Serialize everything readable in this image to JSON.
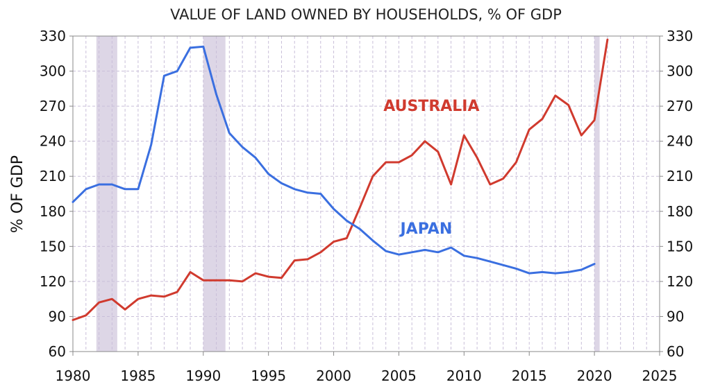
{
  "chart_data": {
    "type": "line",
    "title": "VALUE OF LAND OWNED BY HOUSEHOLDS, % OF GDP",
    "xlabel": "",
    "ylabel": "% OF GDP",
    "xlim": [
      1980,
      2025
    ],
    "ylim": [
      60,
      330
    ],
    "x_ticks": [
      1980,
      1985,
      1990,
      1995,
      2000,
      2005,
      2010,
      2015,
      2020,
      2025
    ],
    "y_ticks": [
      60,
      90,
      120,
      150,
      180,
      210,
      240,
      270,
      300,
      330
    ],
    "grid": true,
    "legend": "none",
    "shaded_periods": [
      {
        "start": 1981.8,
        "end": 1983.4
      },
      {
        "start": 1990.0,
        "end": 1991.7
      },
      {
        "start": 2020.0,
        "end": 2020.4
      }
    ],
    "series": [
      {
        "name": "AUSTRALIA",
        "color": "#d03a2e",
        "x": [
          1980,
          1981,
          1982,
          1983,
          1984,
          1985,
          1986,
          1987,
          1988,
          1989,
          1990,
          1991,
          1992,
          1993,
          1994,
          1995,
          1996,
          1997,
          1998,
          1999,
          2000,
          2001,
          2002,
          2003,
          2004,
          2005,
          2006,
          2007,
          2008,
          2009,
          2010,
          2011,
          2012,
          2013,
          2014,
          2015,
          2016,
          2017,
          2018,
          2019,
          2020,
          2021
        ],
        "values": [
          87,
          91,
          102,
          105,
          96,
          105,
          108,
          107,
          111,
          128,
          121,
          121,
          121,
          120,
          127,
          124,
          123,
          138,
          139,
          145,
          154,
          157,
          183,
          210,
          222,
          222,
          228,
          240,
          231,
          203,
          245,
          226,
          203,
          208,
          222,
          250,
          259,
          279,
          271,
          245,
          258,
          327
        ]
      },
      {
        "name": "JAPAN",
        "color": "#3a6fe0",
        "x": [
          1980,
          1981,
          1982,
          1983,
          1984,
          1985,
          1986,
          1987,
          1988,
          1989,
          1990,
          1991,
          1992,
          1993,
          1994,
          1995,
          1996,
          1997,
          1998,
          1999,
          2000,
          2001,
          2002,
          2003,
          2004,
          2005,
          2006,
          2007,
          2008,
          2009,
          2010,
          2011,
          2012,
          2013,
          2014,
          2015,
          2016,
          2017,
          2018,
          2019,
          2020
        ],
        "values": [
          188,
          199,
          203,
          203,
          199,
          199,
          237,
          296,
          300,
          320,
          321,
          280,
          247,
          235,
          226,
          212,
          204,
          199,
          196,
          195,
          182,
          172,
          165,
          155,
          146,
          143,
          145,
          147,
          145,
          149,
          142,
          140,
          137,
          134,
          131,
          127,
          128,
          127,
          128,
          130,
          135
        ]
      }
    ]
  }
}
